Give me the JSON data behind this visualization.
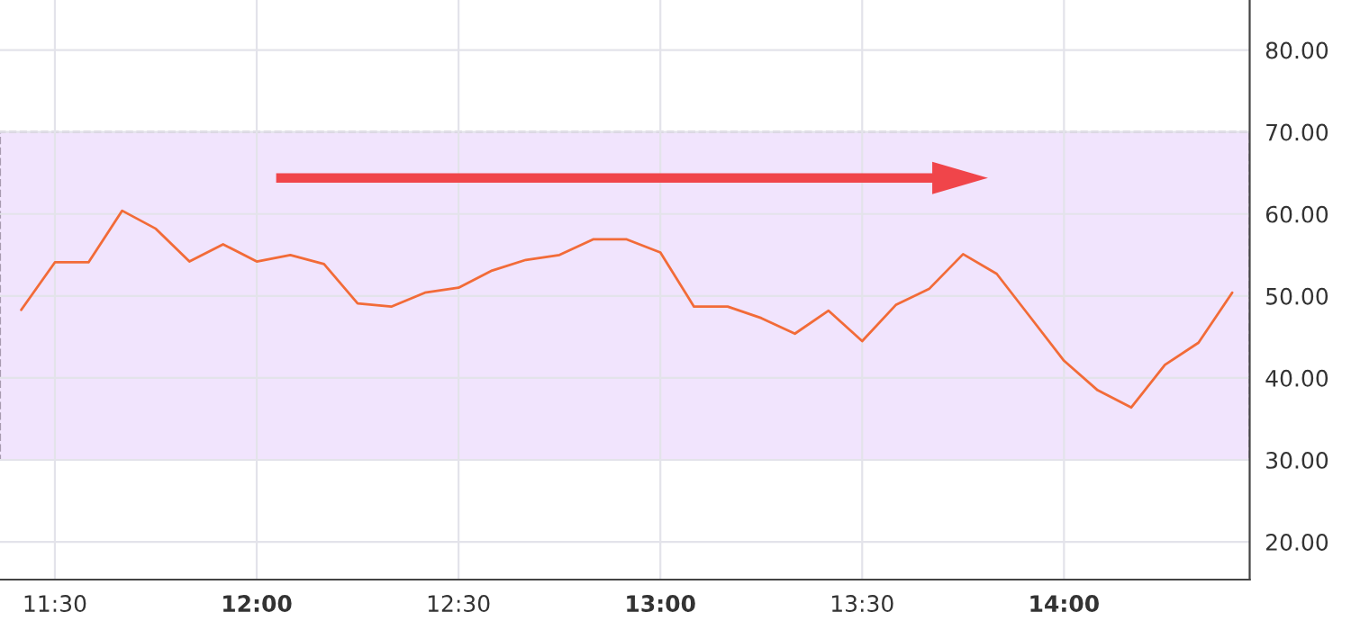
{
  "chart_data": {
    "type": "line",
    "x": [
      11.4167,
      11.5,
      11.5833,
      11.6667,
      11.75,
      11.8333,
      11.9167,
      12.0,
      12.0833,
      12.1667,
      12.25,
      12.3333,
      12.4167,
      12.5,
      12.5833,
      12.6667,
      12.75,
      12.8333,
      12.9167,
      13.0,
      13.0833,
      13.1667,
      13.25,
      13.3333,
      13.4167,
      13.5,
      13.5833,
      13.6667,
      13.75,
      13.8333,
      13.9167,
      14.0,
      14.0833,
      14.1667,
      14.25,
      14.3333,
      14.4167
    ],
    "series": [
      {
        "color": "#f26b38",
        "values": [
          48.3,
          54.1,
          54.1,
          60.4,
          58.2,
          54.2,
          56.3,
          54.2,
          55.0,
          53.9,
          49.1,
          48.7,
          50.4,
          51.0,
          53.1,
          54.4,
          55.0,
          56.9,
          56.9,
          55.3,
          48.7,
          48.7,
          47.3,
          45.4,
          48.2,
          44.5,
          48.9,
          50.9,
          55.1,
          52.7,
          47.4,
          42.1,
          38.5,
          36.4,
          41.6,
          44.3,
          50.4
        ]
      }
    ],
    "xlim": [
      11.364,
      14.46
    ],
    "xticks": [
      {
        "value": 11.5,
        "label": "11:30"
      },
      {
        "value": 12.0,
        "label": "12:00"
      },
      {
        "value": 12.5,
        "label": "12:30"
      },
      {
        "value": 13.0,
        "label": "13:00"
      },
      {
        "value": 13.5,
        "label": "13:30"
      },
      {
        "value": 14.0,
        "label": "14:00"
      }
    ],
    "ylim": [
      15.4,
      86.1
    ],
    "yticks": [
      {
        "value": 20,
        "label": "20.00"
      },
      {
        "value": 30,
        "label": "30.00"
      },
      {
        "value": 40,
        "label": "40.00"
      },
      {
        "value": 50,
        "label": "50.00"
      },
      {
        "value": 60,
        "label": "60.00"
      },
      {
        "value": 70,
        "label": "70.00"
      },
      {
        "value": 80,
        "label": "80.00"
      }
    ],
    "bands": [
      {
        "axis": "y",
        "from": 30,
        "to": 70,
        "color": "#f1e4fd"
      }
    ],
    "grid": true,
    "legend": false,
    "marker": "none",
    "line_style": "solid"
  }
}
